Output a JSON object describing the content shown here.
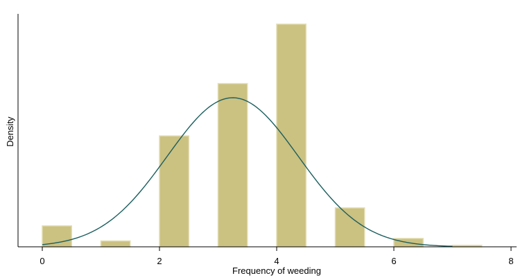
{
  "chart_data": {
    "type": "bar",
    "subtype": "histogram with normal density overlay",
    "title": "",
    "xlabel": "Frequency of weeding",
    "ylabel": "Density",
    "xlim": [
      -0.3,
      8
    ],
    "ylim": [
      0,
      0.54
    ],
    "x_ticks": [
      0,
      2,
      4,
      6,
      8
    ],
    "x_tick_labels": [
      "0",
      "2",
      "4",
      "6",
      "8"
    ],
    "y_ticks_shown": false,
    "grid": false,
    "bin_width": 0.5,
    "bars": [
      {
        "x": 0,
        "value": 0.05
      },
      {
        "x": 1,
        "value": 0.014
      },
      {
        "x": 2,
        "value": 0.265
      },
      {
        "x": 3,
        "value": 0.39
      },
      {
        "x": 4,
        "value": 0.532
      },
      {
        "x": 5,
        "value": 0.093
      },
      {
        "x": 6,
        "value": 0.02
      },
      {
        "x": 7,
        "value": 0.0035
      }
    ],
    "density_curve": {
      "type": "normal",
      "mean": 3.25,
      "sd": 1.12,
      "x_range": [
        0,
        7
      ]
    },
    "colors": {
      "bar_fill": "#cbc181",
      "bar_edge": "#e2dcb2",
      "curve": "#1a5e5e",
      "axis": "#000000"
    }
  }
}
